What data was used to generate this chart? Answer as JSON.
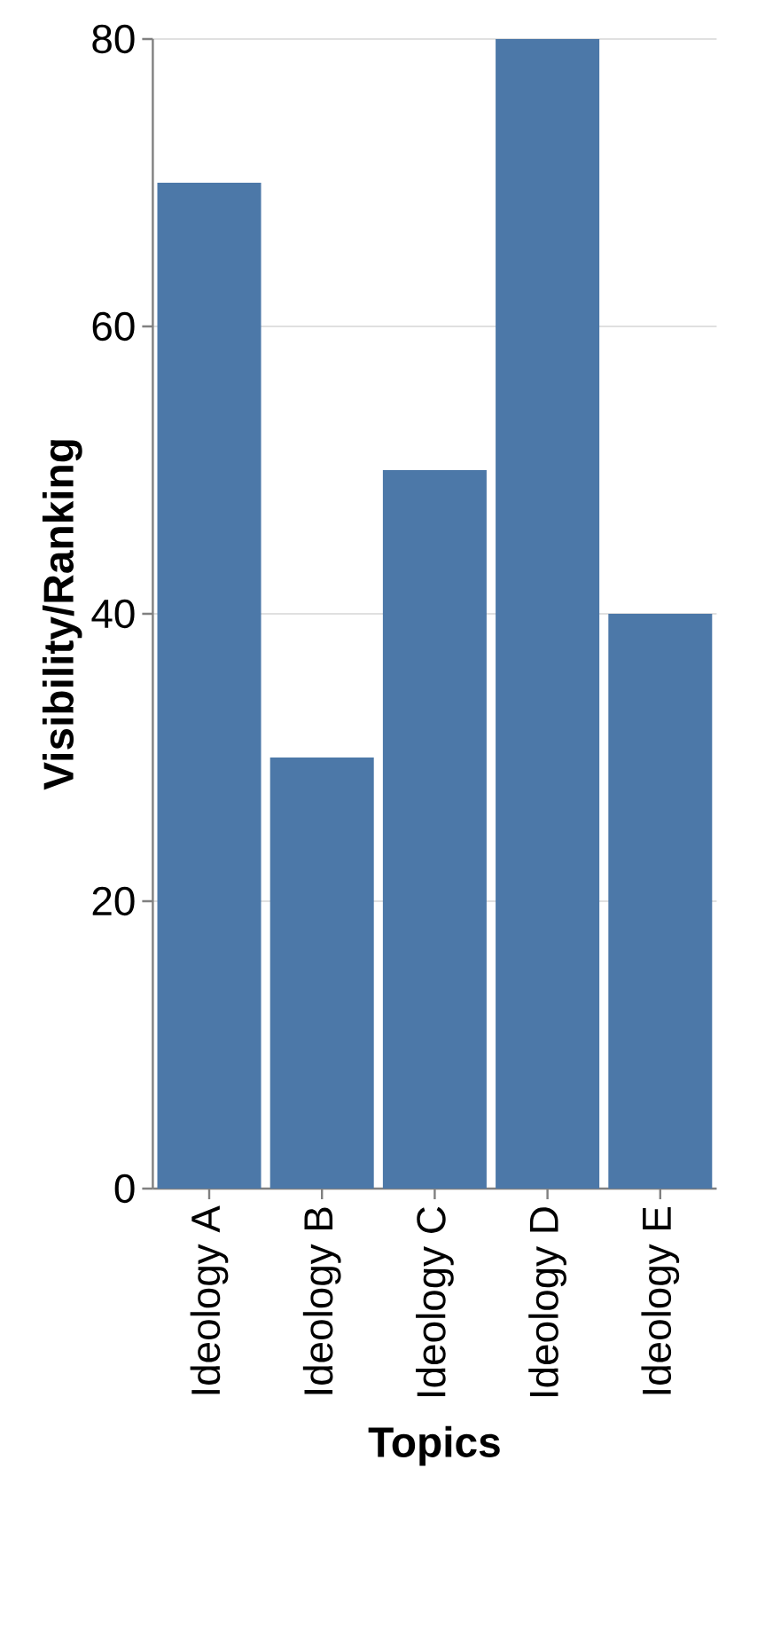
{
  "chart_data": {
    "type": "bar",
    "xlabel": "Topics",
    "ylabel": "Visibility/Ranking",
    "categories": [
      "Ideology A",
      "Ideology B",
      "Ideology C",
      "Ideology D",
      "Ideology E"
    ],
    "values": [
      70,
      30,
      50,
      80,
      40
    ],
    "color": "#4c78a8",
    "ylim": [
      0,
      80
    ],
    "yticks": [
      0,
      20,
      40,
      60,
      80
    ],
    "grid": "y"
  }
}
